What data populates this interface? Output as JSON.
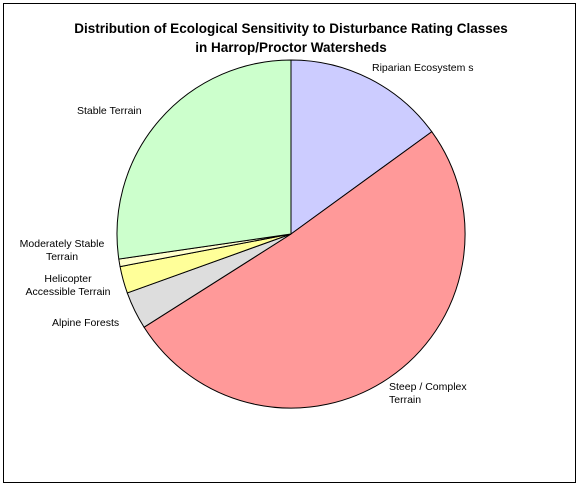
{
  "chart_data": {
    "type": "pie",
    "title": "Distribution of Ecological Sensitivity to Disturbance Rating Classes in Harrop/Proctor Watersheds",
    "title_lines": [
      "Distribution of Ecological Sensitivity to Disturbance Rating Classes",
      "in Harrop/Proctor Watersheds"
    ],
    "legend": "none",
    "slices": [
      {
        "label": "Riparian Ecosystem s",
        "label_lines": [
          "Riparian Ecosystem s"
        ],
        "value": 15,
        "color": "#CCCCFF"
      },
      {
        "label": "Steep / Complex Terrain",
        "label_lines": [
          "Steep / Complex",
          "Terrain"
        ],
        "value": 51,
        "color": "#FF9999"
      },
      {
        "label": "Alpine Forests",
        "label_lines": [
          "Alpine Forests"
        ],
        "value": 3.5,
        "color": "#DDDDDD"
      },
      {
        "label": "Helicopter Accessible Terrain",
        "label_lines": [
          "Helicopter",
          "Accessible Terrain"
        ],
        "value": 2.5,
        "color": "#FFFF99"
      },
      {
        "label": "Moderately Stable Terrain",
        "label_lines": [
          "Moderately Stable",
          "Terrain"
        ],
        "value": 0.7,
        "color": "#FFFFCC"
      },
      {
        "label": "Stable Terrain",
        "label_lines": [
          "Stable Terrain"
        ],
        "value": 27.3,
        "color": "#CCFFCC"
      }
    ]
  }
}
